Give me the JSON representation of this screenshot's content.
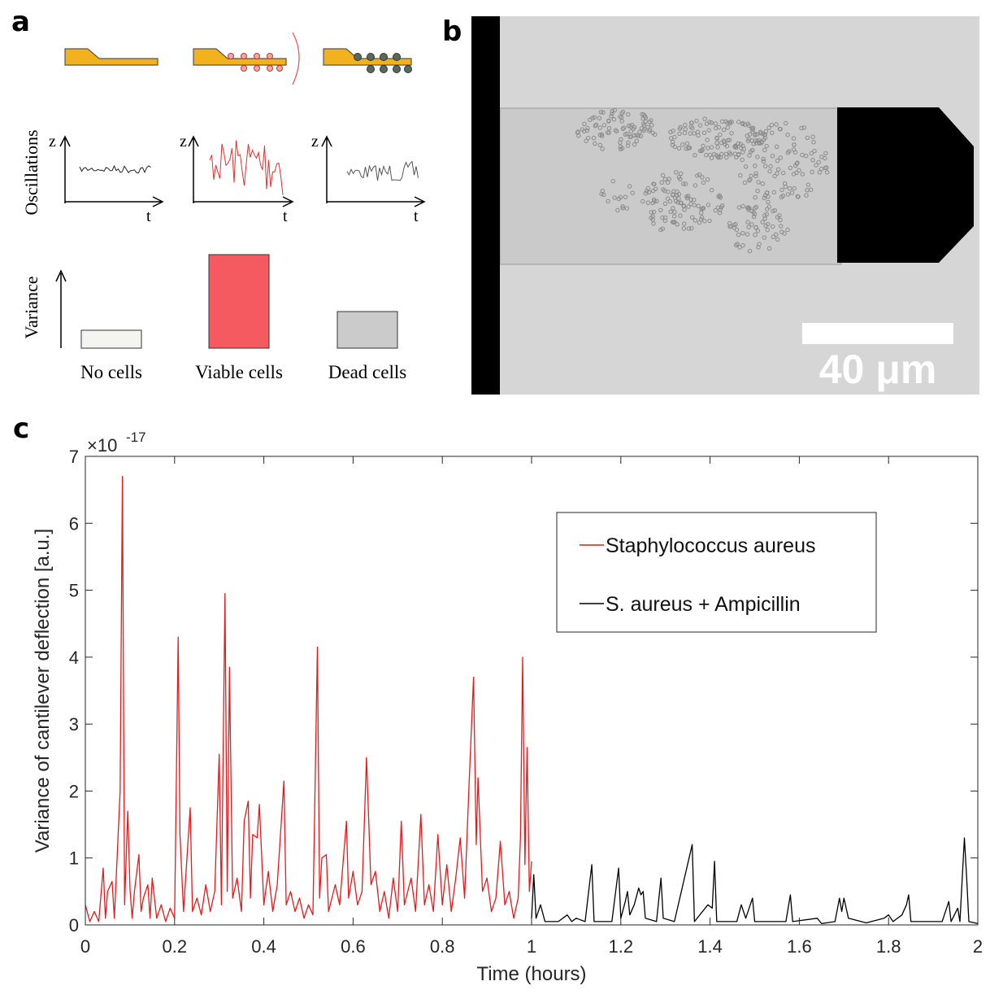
{
  "panels": {
    "a": {
      "label": "a",
      "row_labels": [
        "Oscillations",
        "Variance"
      ],
      "z_labels": [
        "z",
        "z",
        "z"
      ],
      "t_labels": [
        "t",
        "t",
        "t"
      ],
      "categories": [
        "No cells",
        "Viable cells",
        "Dead cells"
      ]
    },
    "b": {
      "label": "b",
      "scale_bar": "40 μm"
    },
    "c": {
      "label": "c"
    }
  },
  "chart_data": {
    "type": "line",
    "xlabel": "Time (hours)",
    "ylabel": "Variance of cantilever deflection [a.u.]",
    "y_multiplier": {
      "base": "×10",
      "exponent": "-17"
    },
    "xlim": [
      0,
      2
    ],
    "ylim": [
      0,
      7
    ],
    "xticks": [
      0,
      0.2,
      0.4,
      0.6,
      0.8,
      1,
      1.2,
      1.4,
      1.6,
      1.8,
      2
    ],
    "yticks": [
      0,
      1,
      2,
      3,
      4,
      5,
      6,
      7
    ],
    "grid": false,
    "legend": "upper right",
    "series": [
      {
        "name": "Staphylococcus aureus",
        "color": "#e8191a",
        "x": [
          0,
          0.01,
          0.02,
          0.03,
          0.04,
          0.045,
          0.05,
          0.06,
          0.065,
          0.078,
          0.083,
          0.088,
          0.095,
          0.1,
          0.105,
          0.11,
          0.12,
          0.125,
          0.13,
          0.14,
          0.145,
          0.15,
          0.16,
          0.17,
          0.18,
          0.19,
          0.2,
          0.208,
          0.212,
          0.22,
          0.235,
          0.24,
          0.25,
          0.26,
          0.27,
          0.28,
          0.29,
          0.3,
          0.305,
          0.313,
          0.318,
          0.323,
          0.33,
          0.34,
          0.35,
          0.356,
          0.365,
          0.37,
          0.375,
          0.385,
          0.39,
          0.4,
          0.41,
          0.42,
          0.43,
          0.445,
          0.45,
          0.46,
          0.47,
          0.48,
          0.49,
          0.5,
          0.51,
          0.52,
          0.525,
          0.53,
          0.54,
          0.545,
          0.56,
          0.57,
          0.585,
          0.59,
          0.6,
          0.61,
          0.62,
          0.63,
          0.64,
          0.65,
          0.66,
          0.67,
          0.68,
          0.69,
          0.7,
          0.708,
          0.715,
          0.73,
          0.74,
          0.752,
          0.76,
          0.77,
          0.78,
          0.79,
          0.8,
          0.81,
          0.82,
          0.83,
          0.84,
          0.85,
          0.86,
          0.87,
          0.876,
          0.88,
          0.89,
          0.9,
          0.91,
          0.92,
          0.93,
          0.94,
          0.95,
          0.96,
          0.97,
          0.975,
          0.98,
          0.985,
          0.99,
          0.995,
          1
        ],
        "values": [
          0.3,
          0.05,
          0.2,
          0.05,
          0.85,
          0.1,
          0.5,
          0.65,
          0.1,
          2.0,
          6.7,
          0.3,
          1.7,
          0.55,
          0.1,
          0.5,
          1.05,
          0.2,
          0.4,
          0.6,
          0.1,
          0.7,
          0.1,
          0.3,
          0.05,
          0.25,
          0.1,
          4.3,
          1.35,
          0.2,
          1.75,
          0.2,
          0.4,
          0.15,
          0.6,
          0.2,
          0.5,
          2.55,
          0.3,
          4.95,
          0.5,
          3.85,
          0.4,
          0.7,
          0.2,
          1.55,
          1.85,
          0.4,
          1.35,
          1.3,
          1.8,
          0.3,
          0.8,
          0.2,
          0.6,
          2.15,
          0.3,
          0.5,
          0.2,
          0.4,
          0.1,
          0.3,
          0.15,
          4.15,
          0.4,
          1.0,
          1.05,
          0.2,
          0.6,
          0.3,
          1.55,
          0.4,
          0.8,
          0.3,
          0.5,
          2.5,
          0.6,
          0.8,
          0.2,
          0.5,
          0.1,
          0.7,
          0.2,
          1.55,
          0.3,
          0.7,
          0.2,
          1.65,
          0.3,
          0.6,
          0.2,
          1.35,
          0.3,
          0.9,
          0.2,
          0.7,
          1.3,
          0.4,
          2.1,
          3.7,
          1.2,
          2.2,
          0.5,
          0.7,
          0.2,
          0.4,
          1.25,
          0.3,
          0.5,
          0.1,
          0.4,
          1.3,
          4.0,
          0.9,
          2.65,
          0.5,
          0.95
        ]
      },
      {
        "name": "S. aureus + Ampicillin",
        "color": "#000000",
        "x": [
          1,
          1.005,
          1.01,
          1.02,
          1.03,
          1.06,
          1.08,
          1.09,
          1.1,
          1.12,
          1.135,
          1.14,
          1.18,
          1.195,
          1.2,
          1.21,
          1.215,
          1.22,
          1.23,
          1.24,
          1.245,
          1.25,
          1.255,
          1.28,
          1.29,
          1.295,
          1.32,
          1.36,
          1.365,
          1.395,
          1.405,
          1.41,
          1.415,
          1.46,
          1.47,
          1.48,
          1.495,
          1.5,
          1.57,
          1.58,
          1.585,
          1.64,
          1.65,
          1.68,
          1.69,
          1.695,
          1.7,
          1.71,
          1.75,
          1.79,
          1.8,
          1.81,
          1.83,
          1.84,
          1.845,
          1.85,
          1.92,
          1.935,
          1.94,
          1.955,
          1.96,
          1.97,
          1.975,
          1.98,
          2
        ],
        "values": [
          0.1,
          0.75,
          0.1,
          0.3,
          0.05,
          0.05,
          0.15,
          0.05,
          0.1,
          0.05,
          0.9,
          0.05,
          0.05,
          0.85,
          0.1,
          0.35,
          0.5,
          0.15,
          0.3,
          0.55,
          0.45,
          0.5,
          0.1,
          0.05,
          0.7,
          0.1,
          0.05,
          1.2,
          0.05,
          0.3,
          0.25,
          0.95,
          0.05,
          0.05,
          0.3,
          0.1,
          0.4,
          0.05,
          0.05,
          0.45,
          0.05,
          0.1,
          0.02,
          0.05,
          0.4,
          0.2,
          0.4,
          0.1,
          0.03,
          0.1,
          0.15,
          0.05,
          0.15,
          0.3,
          0.45,
          0.05,
          0.05,
          0.35,
          0.05,
          0.25,
          0.05,
          1.3,
          0.7,
          0.05,
          0.02
        ]
      }
    ]
  }
}
